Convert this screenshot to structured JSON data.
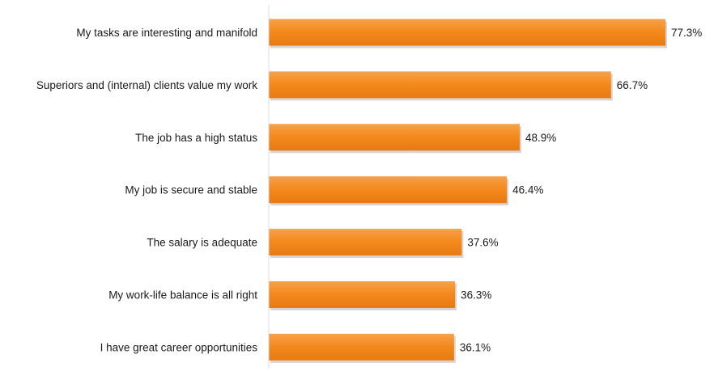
{
  "chart_data": {
    "type": "bar",
    "orientation": "horizontal",
    "categories": [
      "My tasks are interesting and manifold",
      "Superiors and (internal) clients value my work",
      "The job has a high status",
      "My job is secure and stable",
      "The salary is adequate",
      "My work-life balance is all right",
      "I have great career opportunities"
    ],
    "values": [
      77.3,
      66.7,
      48.9,
      46.4,
      37.6,
      36.3,
      36.1
    ],
    "value_labels": [
      "77.3%",
      "66.7%",
      "48.9%",
      "46.4%",
      "37.6%",
      "36.3%",
      "36.1%"
    ],
    "xlim": [
      0,
      100
    ],
    "grid": false,
    "legend": "none",
    "bar_color": "#F48A1E",
    "bar_shadow_color": "#b9b9b9"
  }
}
